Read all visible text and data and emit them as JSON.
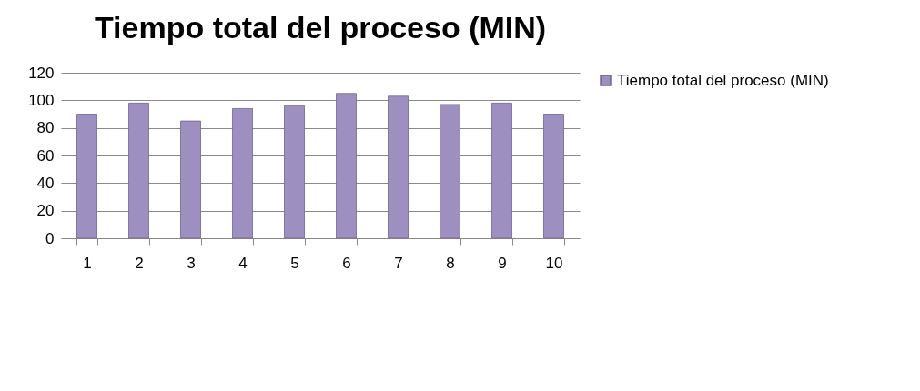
{
  "chart_data": {
    "type": "bar",
    "title": "Tiempo total del proceso (MIN)",
    "categories": [
      "1",
      "2",
      "3",
      "4",
      "5",
      "6",
      "7",
      "8",
      "9",
      "10"
    ],
    "series": [
      {
        "name": "Tiempo total del proceso (MIN)",
        "color": "#9d8fc0",
        "values": [
          90,
          98,
          85,
          94,
          96,
          105,
          103,
          97,
          98,
          90
        ]
      }
    ],
    "ylim": [
      0,
      120
    ],
    "yticks": [
      0,
      20,
      40,
      60,
      80,
      100,
      120
    ],
    "grid": "y",
    "legend": "right"
  }
}
